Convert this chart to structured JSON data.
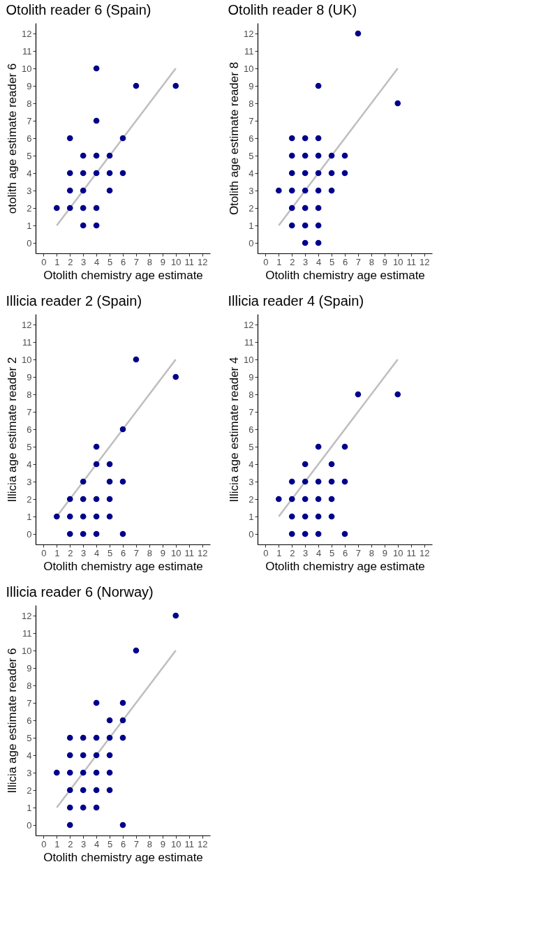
{
  "chart_data": [
    {
      "type": "scatter",
      "title": "Otolith reader 6 (Spain)",
      "xlabel": "Otolith chemistry age estimate",
      "ylabel": "otolith age estimate reader 6",
      "xlim": [
        -0.6,
        12.6
      ],
      "ylim": [
        -0.6,
        12.6
      ],
      "xticks": [
        0,
        1,
        2,
        3,
        4,
        5,
        6,
        7,
        8,
        9,
        10,
        11,
        12
      ],
      "yticks": [
        0,
        1,
        2,
        3,
        4,
        5,
        6,
        7,
        8,
        9,
        10,
        11,
        12
      ],
      "grid": false,
      "series": [
        {
          "type": "line",
          "color": "#bebebe",
          "x": [
            1,
            10
          ],
          "values": [
            1,
            10
          ]
        },
        {
          "marker": "circle",
          "color": "#00008b",
          "x": [
            1,
            2,
            2,
            2,
            2,
            3,
            3,
            3,
            3,
            3,
            4,
            4,
            4,
            4,
            4,
            4,
            5,
            5,
            5,
            6,
            6,
            7,
            10
          ],
          "values": [
            2,
            2,
            3,
            4,
            6,
            1,
            2,
            3,
            4,
            5,
            1,
            2,
            4,
            5,
            7,
            10,
            3,
            4,
            5,
            4,
            6,
            9,
            9
          ]
        }
      ]
    },
    {
      "type": "scatter",
      "title": "Otolith reader 8 (UK)",
      "xlabel": "Otolith chemistry age estimate",
      "ylabel": "Otolith age estimate reader 8",
      "xlim": [
        -0.6,
        12.6
      ],
      "ylim": [
        -0.6,
        12.6
      ],
      "xticks": [
        0,
        1,
        2,
        3,
        4,
        5,
        6,
        7,
        8,
        9,
        10,
        11,
        12
      ],
      "yticks": [
        0,
        1,
        2,
        3,
        4,
        5,
        6,
        7,
        8,
        9,
        10,
        11,
        12
      ],
      "grid": false,
      "series": [
        {
          "type": "line",
          "color": "#bebebe",
          "x": [
            1,
            10
          ],
          "values": [
            1,
            10
          ]
        },
        {
          "marker": "circle",
          "color": "#00008b",
          "x": [
            3,
            4,
            2,
            3,
            4,
            2,
            3,
            4,
            1,
            2,
            3,
            4,
            5,
            2,
            3,
            4,
            5,
            6,
            2,
            3,
            4,
            5,
            6,
            2,
            3,
            4,
            10,
            4,
            7
          ],
          "values": [
            0,
            0,
            1,
            1,
            1,
            2,
            2,
            2,
            3,
            3,
            3,
            3,
            3,
            4,
            4,
            4,
            4,
            4,
            5,
            5,
            5,
            5,
            5,
            6,
            6,
            6,
            8,
            9,
            12
          ]
        }
      ]
    },
    {
      "type": "scatter",
      "title": "Illicia reader 2 (Spain)",
      "xlabel": "Otolith chemistry age estimate",
      "ylabel": "Illicia age estimate reader 2",
      "xlim": [
        -0.6,
        12.6
      ],
      "ylim": [
        -0.6,
        12.6
      ],
      "xticks": [
        0,
        1,
        2,
        3,
        4,
        5,
        6,
        7,
        8,
        9,
        10,
        11,
        12
      ],
      "yticks": [
        0,
        1,
        2,
        3,
        4,
        5,
        6,
        7,
        8,
        9,
        10,
        11,
        12
      ],
      "grid": false,
      "series": [
        {
          "type": "line",
          "color": "#bebebe",
          "x": [
            1,
            10
          ],
          "values": [
            1,
            10
          ]
        },
        {
          "marker": "circle",
          "color": "#00008b",
          "x": [
            2,
            3,
            4,
            6,
            1,
            2,
            3,
            4,
            5,
            2,
            3,
            4,
            5,
            3,
            5,
            6,
            4,
            5,
            4,
            6,
            10,
            7
          ],
          "values": [
            0,
            0,
            0,
            0,
            1,
            1,
            1,
            1,
            1,
            2,
            2,
            2,
            2,
            3,
            3,
            3,
            4,
            4,
            5,
            6,
            9,
            10
          ]
        }
      ]
    },
    {
      "type": "scatter",
      "title": "Illicia reader 4 (Spain)",
      "xlabel": "Otolith chemistry age estimate",
      "ylabel": "Illicia age estimate reader 4",
      "xlim": [
        -0.6,
        12.6
      ],
      "ylim": [
        -0.6,
        12.6
      ],
      "xticks": [
        0,
        1,
        2,
        3,
        4,
        5,
        6,
        7,
        8,
        9,
        10,
        11,
        12
      ],
      "yticks": [
        0,
        1,
        2,
        3,
        4,
        5,
        6,
        7,
        8,
        9,
        10,
        11,
        12
      ],
      "grid": false,
      "series": [
        {
          "type": "line",
          "color": "#bebebe",
          "x": [
            1,
            10
          ],
          "values": [
            1,
            10
          ]
        },
        {
          "marker": "circle",
          "color": "#00008b",
          "x": [
            2,
            3,
            4,
            6,
            2,
            3,
            4,
            5,
            1,
            2,
            3,
            4,
            5,
            2,
            3,
            4,
            5,
            6,
            3,
            5,
            4,
            6,
            7,
            10
          ],
          "values": [
            0,
            0,
            0,
            0,
            1,
            1,
            1,
            1,
            2,
            2,
            2,
            2,
            2,
            3,
            3,
            3,
            3,
            3,
            4,
            4,
            5,
            5,
            8,
            8
          ]
        }
      ]
    },
    {
      "type": "scatter",
      "title": "Illicia reader 6 (Norway)",
      "xlabel": "Otolith chemistry age estimate",
      "ylabel": "Illicia age estimate reader 6",
      "xlim": [
        -0.6,
        12.6
      ],
      "ylim": [
        -0.6,
        12.6
      ],
      "xticks": [
        0,
        1,
        2,
        3,
        4,
        5,
        6,
        7,
        8,
        9,
        10,
        11,
        12
      ],
      "yticks": [
        0,
        1,
        2,
        3,
        4,
        5,
        6,
        7,
        8,
        9,
        10,
        11,
        12
      ],
      "grid": false,
      "series": [
        {
          "type": "line",
          "color": "#bebebe",
          "x": [
            1,
            10
          ],
          "values": [
            1,
            10
          ]
        },
        {
          "marker": "circle",
          "color": "#00008b",
          "x": [
            2,
            6,
            2,
            3,
            4,
            2,
            3,
            4,
            5,
            1,
            2,
            3,
            4,
            5,
            2,
            3,
            4,
            5,
            2,
            3,
            4,
            5,
            6,
            5,
            6,
            4,
            6,
            7,
            10
          ],
          "values": [
            0,
            0,
            1,
            1,
            1,
            2,
            2,
            2,
            2,
            3,
            3,
            3,
            3,
            3,
            4,
            4,
            4,
            4,
            5,
            5,
            5,
            5,
            5,
            6,
            6,
            7,
            7,
            10,
            12
          ]
        }
      ]
    }
  ]
}
